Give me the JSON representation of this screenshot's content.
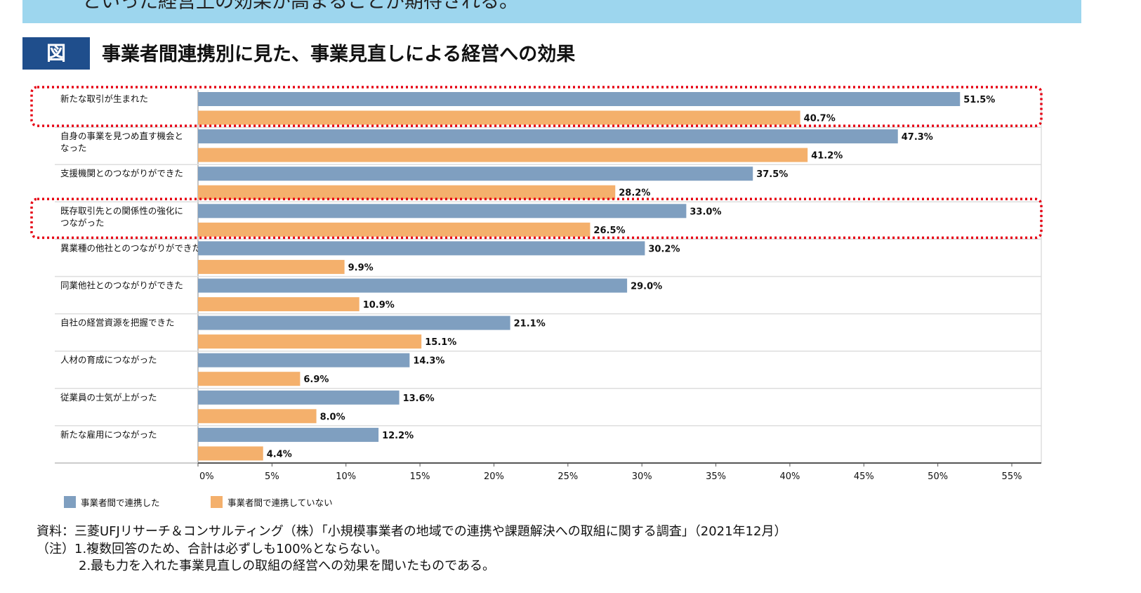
{
  "banner_text": "といった経営上の効果が高まることが期待される。",
  "figure_badge": "図",
  "figure_title": "事業者間連携別に見た、事業見直しによる経営への効果",
  "chart_data": {
    "type": "bar",
    "orientation": "horizontal",
    "categories": [
      "新たな取引が生まれた",
      "自身の事業を見つめ直す機会となった",
      "支援機関とのつながりができた",
      "既存取引先との関係性の強化につながった",
      "異業種の他社とのつながりができた",
      "同業他社とのつながりができた",
      "自社の経営資源を把握できた",
      "人材の育成につながった",
      "従業員の士気が上がった",
      "新たな雇用につながった"
    ],
    "category_lines": [
      [
        "新たな取引が生まれた"
      ],
      [
        "自身の事業を見つめ直す機会と",
        "なった"
      ],
      [
        "支援機関とのつながりができた"
      ],
      [
        "既存取引先との関係性の強化に",
        "つながった"
      ],
      [
        "異業種の他社とのつながりができた"
      ],
      [
        "同業他社とのつながりができた"
      ],
      [
        "自社の経営資源を把握できた"
      ],
      [
        "人材の育成につながった"
      ],
      [
        "従業員の士気が上がった"
      ],
      [
        "新たな雇用につながった"
      ]
    ],
    "series": [
      {
        "name": "事業者間で連携した",
        "color": "#7f9fc0",
        "values": [
          51.5,
          47.3,
          37.5,
          33.0,
          30.2,
          29.0,
          21.1,
          14.3,
          13.6,
          12.2
        ]
      },
      {
        "name": "事業者間で連携していない",
        "color": "#f4b06c",
        "values": [
          40.7,
          41.2,
          28.2,
          26.5,
          9.9,
          10.9,
          15.1,
          6.9,
          8.0,
          4.4
        ]
      }
    ],
    "xlim": [
      0,
      55
    ],
    "xticks": [
      "0%",
      "5%",
      "10%",
      "15%",
      "20%",
      "25%",
      "30%",
      "35%",
      "40%",
      "45%",
      "50%",
      "55%"
    ],
    "legend_position": "bottom-left",
    "highlighted_categories": [
      0,
      3
    ],
    "highlight_color": "#e60012"
  },
  "notes": {
    "source": "資料：三菱UFJリサーチ＆コンサルティング（株）「小規模事業者の地域での連携や課題解決への取組に関する調査」（2021年12月）",
    "note1": "（注）1.複数回答のため、合計は必ずしも100%とならない。",
    "note2": "2.最も力を入れた事業見直しの取組の経営への効果を聞いたものである。"
  }
}
